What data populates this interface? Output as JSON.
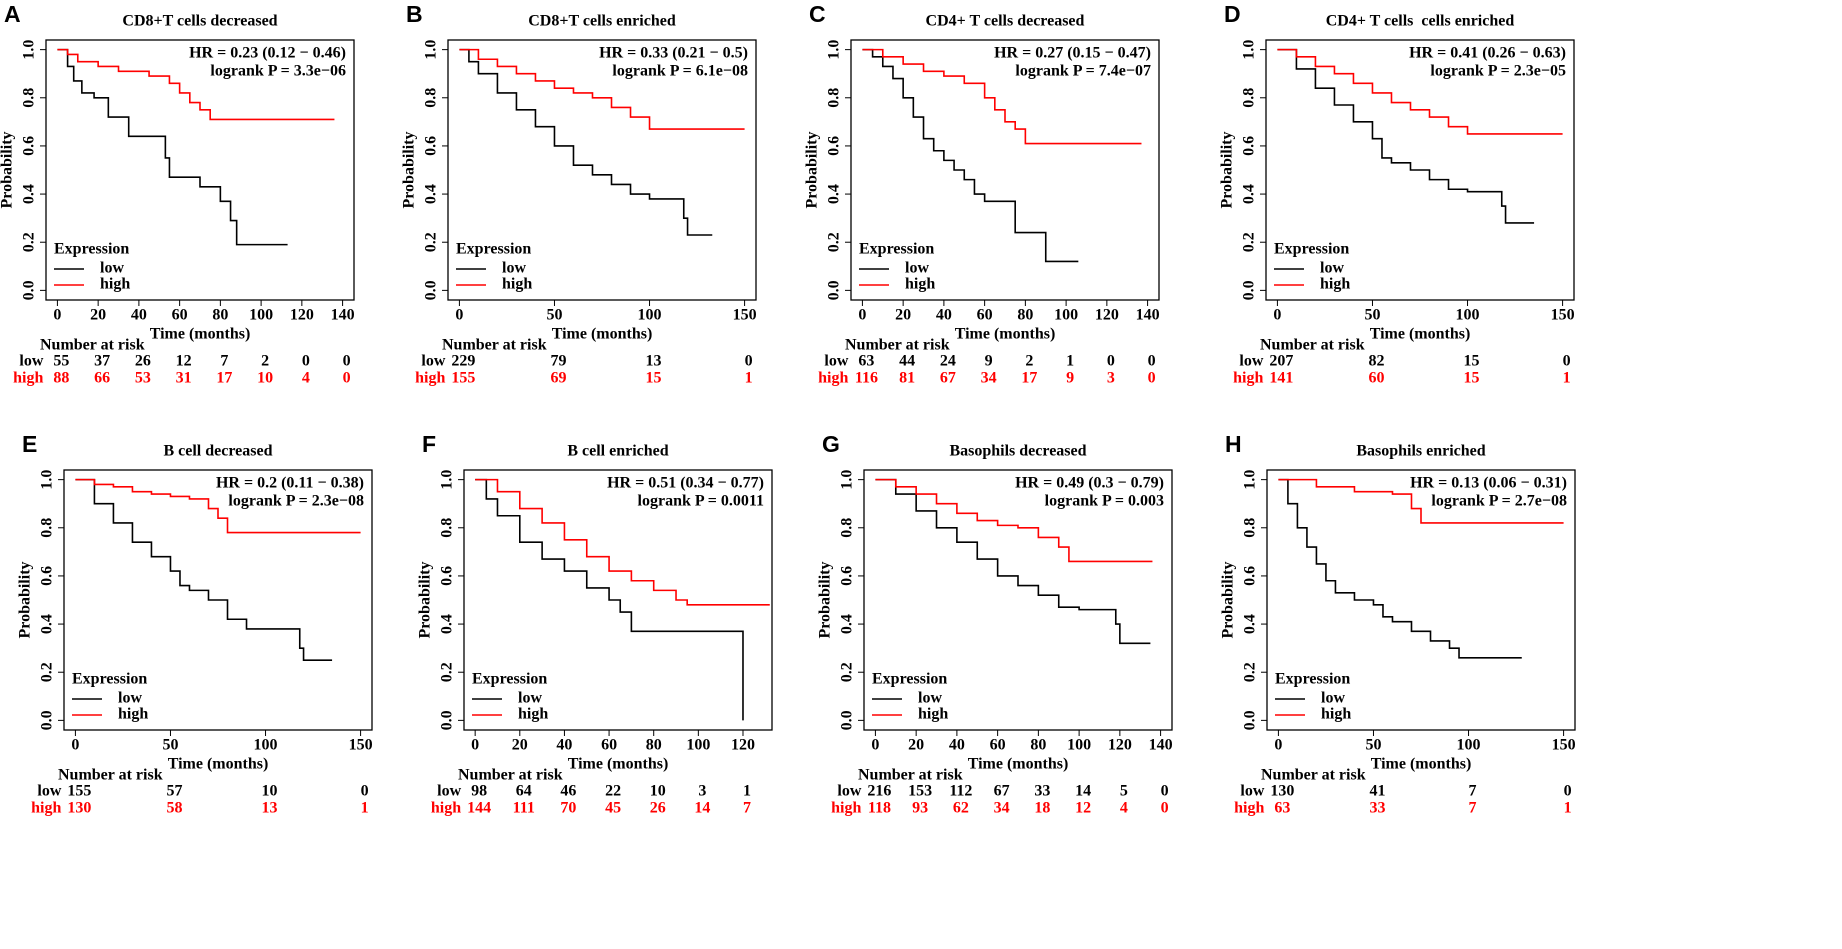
{
  "chart_data": [
    {
      "type": "line",
      "step": true,
      "panel": "A",
      "title": "CD8+T cells decreased",
      "annotations": [
        "HR = 0.23 (0.12 − 0.46)",
        "logrank P = 3.3e−06"
      ],
      "xlabel": "Time (months)",
      "ylabel": "Probability",
      "xlim": [
        -5.6,
        145.6
      ],
      "ylim": [
        -0.04,
        1.04
      ],
      "xticks": [
        0,
        20,
        40,
        60,
        80,
        100,
        120,
        140
      ],
      "yticks": [
        {
          "value": 0,
          "label": "0.0"
        },
        0.2,
        0.4,
        0.6,
        0.8,
        {
          "value": 1,
          "label": "1.0"
        }
      ],
      "legend_title": "Expression",
      "legend": "bottomleft",
      "series": [
        {
          "name": "low",
          "color": "#000000",
          "x": [
            0,
            5,
            8,
            12,
            18,
            25,
            35,
            50,
            53,
            55,
            65,
            70,
            80,
            85,
            88,
            95,
            113
          ],
          "values": [
            1,
            0.93,
            0.87,
            0.82,
            0.8,
            0.72,
            0.64,
            0.64,
            0.55,
            0.47,
            0.47,
            0.43,
            0.37,
            0.29,
            0.19,
            0.19,
            0.19
          ]
        },
        {
          "name": "high",
          "color": "#ff0000",
          "x": [
            0,
            5,
            10,
            20,
            30,
            45,
            55,
            60,
            65,
            70,
            75,
            136
          ],
          "values": [
            1,
            0.98,
            0.95,
            0.93,
            0.91,
            0.89,
            0.86,
            0.82,
            0.78,
            0.75,
            0.71,
            0.71
          ]
        }
      ],
      "risk_table": {
        "title": "Number at risk",
        "rows": [
          {
            "name": "low",
            "values": [
              55,
              37,
              26,
              12,
              7,
              2,
              0,
              0
            ]
          },
          {
            "name": "high",
            "values": [
              88,
              66,
              53,
              31,
              17,
              10,
              4,
              0
            ]
          }
        ]
      }
    },
    {
      "type": "line",
      "step": true,
      "panel": "B",
      "title": "CD8+T cells enriched",
      "annotations": [
        "HR = 0.33 (0.21 − 0.5)",
        "logrank P = 6.1e−08"
      ],
      "xlabel": "Time (months)",
      "ylabel": "Probability",
      "xlim": [
        -6,
        156
      ],
      "ylim": [
        -0.04,
        1.04
      ],
      "xticks": [
        0,
        50,
        100,
        150
      ],
      "yticks": [
        {
          "value": 0,
          "label": "0.0"
        },
        0.2,
        0.4,
        0.6,
        0.8,
        {
          "value": 1,
          "label": "1.0"
        }
      ],
      "legend_title": "Expression",
      "legend": "bottomleft",
      "series": [
        {
          "name": "low",
          "color": "#000000",
          "x": [
            0,
            5,
            10,
            20,
            30,
            40,
            50,
            60,
            70,
            80,
            90,
            100,
            110,
            118,
            120,
            133
          ],
          "values": [
            1,
            0.95,
            0.9,
            0.82,
            0.75,
            0.68,
            0.6,
            0.52,
            0.48,
            0.44,
            0.4,
            0.38,
            0.38,
            0.3,
            0.23,
            0.23
          ]
        },
        {
          "name": "high",
          "color": "#ff0000",
          "x": [
            0,
            10,
            20,
            30,
            40,
            50,
            60,
            70,
            80,
            90,
            100,
            150
          ],
          "values": [
            1,
            0.96,
            0.93,
            0.9,
            0.87,
            0.84,
            0.82,
            0.8,
            0.76,
            0.72,
            0.67,
            0.67
          ]
        }
      ],
      "risk_table": {
        "title": "Number at risk",
        "rows": [
          {
            "name": "low",
            "values": [
              229,
              79,
              13,
              0
            ]
          },
          {
            "name": "high",
            "values": [
              155,
              69,
              15,
              1
            ]
          }
        ]
      }
    },
    {
      "type": "line",
      "step": true,
      "panel": "C",
      "title": "CD4+ T cells decreased",
      "annotations": [
        "HR = 0.27 (0.15 − 0.47)",
        "logrank P = 7.4e−07"
      ],
      "xlabel": "Time (months)",
      "ylabel": "Probability",
      "xlim": [
        -5.6,
        145.6
      ],
      "ylim": [
        -0.04,
        1.04
      ],
      "xticks": [
        0,
        20,
        40,
        60,
        80,
        100,
        120,
        140
      ],
      "yticks": [
        {
          "value": 0,
          "label": "0.0"
        },
        0.2,
        0.4,
        0.6,
        0.8,
        {
          "value": 1,
          "label": "1.0"
        }
      ],
      "legend_title": "Expression",
      "legend": "bottomleft",
      "series": [
        {
          "name": "low",
          "color": "#000000",
          "x": [
            0,
            5,
            10,
            15,
            20,
            25,
            30,
            35,
            40,
            45,
            50,
            55,
            60,
            70,
            75,
            90,
            106
          ],
          "values": [
            1,
            0.97,
            0.93,
            0.88,
            0.8,
            0.72,
            0.63,
            0.58,
            0.54,
            0.5,
            0.46,
            0.4,
            0.37,
            0.37,
            0.24,
            0.12,
            0.12
          ]
        },
        {
          "name": "high",
          "color": "#ff0000",
          "x": [
            0,
            10,
            20,
            30,
            40,
            50,
            60,
            65,
            70,
            75,
            80,
            137
          ],
          "values": [
            1,
            0.97,
            0.94,
            0.91,
            0.89,
            0.86,
            0.8,
            0.75,
            0.7,
            0.67,
            0.61,
            0.61
          ]
        }
      ],
      "risk_table": {
        "title": "Number at risk",
        "rows": [
          {
            "name": "low",
            "values": [
              63,
              44,
              24,
              9,
              2,
              1,
              0,
              0
            ]
          },
          {
            "name": "high",
            "values": [
              116,
              81,
              67,
              34,
              17,
              9,
              3,
              0
            ]
          }
        ]
      }
    },
    {
      "type": "line",
      "step": true,
      "panel": "D",
      "title": "CD4+ T cells  cells enriched",
      "annotations": [
        "HR = 0.41 (0.26 − 0.63)",
        "logrank P = 2.3e−05"
      ],
      "xlabel": "Time (months)",
      "ylabel": "Probability",
      "xlim": [
        -6,
        156
      ],
      "ylim": [
        -0.04,
        1.04
      ],
      "xticks": [
        0,
        50,
        100,
        150
      ],
      "yticks": [
        {
          "value": 0,
          "label": "0.0"
        },
        0.2,
        0.4,
        0.6,
        0.8,
        {
          "value": 1,
          "label": "1.0"
        }
      ],
      "legend_title": "Expression",
      "legend": "bottomleft",
      "series": [
        {
          "name": "low",
          "color": "#000000",
          "x": [
            0,
            10,
            20,
            30,
            40,
            50,
            55,
            60,
            70,
            80,
            90,
            100,
            110,
            118,
            120,
            135
          ],
          "values": [
            1,
            0.92,
            0.84,
            0.77,
            0.7,
            0.63,
            0.55,
            0.53,
            0.5,
            0.46,
            0.42,
            0.41,
            0.41,
            0.35,
            0.28,
            0.28
          ]
        },
        {
          "name": "high",
          "color": "#ff0000",
          "x": [
            0,
            10,
            20,
            30,
            40,
            50,
            60,
            70,
            80,
            90,
            100,
            150
          ],
          "values": [
            1,
            0.97,
            0.93,
            0.9,
            0.86,
            0.82,
            0.78,
            0.75,
            0.72,
            0.68,
            0.65,
            0.65
          ]
        }
      ],
      "risk_table": {
        "title": "Number at risk",
        "rows": [
          {
            "name": "low",
            "values": [
              207,
              82,
              15,
              0
            ]
          },
          {
            "name": "high",
            "values": [
              141,
              60,
              15,
              1
            ]
          }
        ]
      }
    },
    {
      "type": "line",
      "step": true,
      "panel": "E",
      "title": "B cell decreased",
      "annotations": [
        "HR = 0.2 (0.11 − 0.38)",
        "logrank P = 2.3e−08"
      ],
      "xlabel": "Time (months)",
      "ylabel": "Probability",
      "xlim": [
        -6,
        156
      ],
      "ylim": [
        -0.04,
        1.04
      ],
      "xticks": [
        0,
        50,
        100,
        150
      ],
      "yticks": [
        {
          "value": 0,
          "label": "0.0"
        },
        0.2,
        0.4,
        0.6,
        0.8,
        {
          "value": 1,
          "label": "1.0"
        }
      ],
      "legend_title": "Expression",
      "legend": "bottomleft",
      "series": [
        {
          "name": "low",
          "color": "#000000",
          "x": [
            0,
            10,
            20,
            30,
            40,
            50,
            55,
            60,
            70,
            80,
            90,
            100,
            110,
            118,
            120,
            135
          ],
          "values": [
            1,
            0.9,
            0.82,
            0.74,
            0.68,
            0.62,
            0.56,
            0.54,
            0.5,
            0.42,
            0.38,
            0.38,
            0.38,
            0.3,
            0.25,
            0.25
          ]
        },
        {
          "name": "high",
          "color": "#ff0000",
          "x": [
            0,
            10,
            20,
            30,
            40,
            50,
            60,
            70,
            75,
            80,
            150
          ],
          "values": [
            1,
            0.98,
            0.97,
            0.95,
            0.94,
            0.93,
            0.92,
            0.88,
            0.84,
            0.78,
            0.78
          ]
        }
      ],
      "risk_table": {
        "title": "Number at risk",
        "rows": [
          {
            "name": "low",
            "values": [
              155,
              57,
              10,
              0
            ]
          },
          {
            "name": "high",
            "values": [
              130,
              58,
              13,
              1
            ]
          }
        ]
      }
    },
    {
      "type": "line",
      "step": true,
      "panel": "F",
      "title": "B cell enriched",
      "annotations": [
        "HR = 0.51 (0.34 − 0.77)",
        "logrank P = 0.0011"
      ],
      "xlabel": "Time (months)",
      "ylabel": "Probability",
      "xlim": [
        -5,
        133
      ],
      "ylim": [
        -0.04,
        1.04
      ],
      "xticks": [
        0,
        20,
        40,
        60,
        80,
        100,
        120
      ],
      "yticks": [
        {
          "value": 0,
          "label": "0.0"
        },
        0.2,
        0.4,
        0.6,
        0.8,
        {
          "value": 1,
          "label": "1.0"
        }
      ],
      "legend_title": "Expression",
      "legend": "bottomleft",
      "series": [
        {
          "name": "low",
          "color": "#000000",
          "x": [
            0,
            5,
            10,
            20,
            30,
            40,
            50,
            60,
            65,
            70,
            80,
            90,
            100,
            110,
            120,
            120
          ],
          "values": [
            1,
            0.92,
            0.85,
            0.74,
            0.67,
            0.62,
            0.55,
            0.5,
            0.45,
            0.37,
            0.37,
            0.37,
            0.37,
            0.37,
            0.37,
            0
          ]
        },
        {
          "name": "high",
          "color": "#ff0000",
          "x": [
            0,
            10,
            20,
            30,
            40,
            50,
            60,
            70,
            80,
            90,
            95,
            132
          ],
          "values": [
            1,
            0.95,
            0.88,
            0.82,
            0.75,
            0.68,
            0.62,
            0.58,
            0.54,
            0.5,
            0.48,
            0.48
          ]
        }
      ],
      "risk_table": {
        "title": "Number at risk",
        "rows": [
          {
            "name": "low",
            "values": [
              98,
              64,
              46,
              22,
              10,
              3,
              1
            ]
          },
          {
            "name": "high",
            "values": [
              144,
              111,
              70,
              45,
              26,
              14,
              7
            ]
          }
        ]
      }
    },
    {
      "type": "line",
      "step": true,
      "panel": "G",
      "title": "Basophils decreased",
      "annotations": [
        "HR = 0.49 (0.3 − 0.79)",
        "logrank P = 0.003"
      ],
      "xlabel": "Time (months)",
      "ylabel": "Probability",
      "xlim": [
        -5.6,
        145.6
      ],
      "ylim": [
        -0.04,
        1.04
      ],
      "xticks": [
        0,
        20,
        40,
        60,
        80,
        100,
        120,
        140
      ],
      "yticks": [
        {
          "value": 0,
          "label": "0.0"
        },
        0.2,
        0.4,
        0.6,
        0.8,
        {
          "value": 1,
          "label": "1.0"
        }
      ],
      "legend_title": "Expression",
      "legend": "bottomleft",
      "series": [
        {
          "name": "low",
          "color": "#000000",
          "x": [
            0,
            10,
            20,
            30,
            40,
            50,
            60,
            70,
            80,
            90,
            100,
            110,
            118,
            120,
            135
          ],
          "values": [
            1,
            0.94,
            0.87,
            0.8,
            0.74,
            0.67,
            0.6,
            0.56,
            0.52,
            0.47,
            0.46,
            0.46,
            0.4,
            0.32,
            0.32
          ]
        },
        {
          "name": "high",
          "color": "#ff0000",
          "x": [
            0,
            10,
            20,
            30,
            40,
            50,
            60,
            70,
            80,
            90,
            95,
            136
          ],
          "values": [
            1,
            0.97,
            0.94,
            0.9,
            0.86,
            0.83,
            0.81,
            0.8,
            0.76,
            0.72,
            0.66,
            0.66
          ]
        }
      ],
      "risk_table": {
        "title": "Number at risk",
        "rows": [
          {
            "name": "low",
            "values": [
              216,
              153,
              112,
              67,
              33,
              14,
              5,
              0
            ]
          },
          {
            "name": "high",
            "values": [
              118,
              93,
              62,
              34,
              18,
              12,
              4,
              0
            ]
          }
        ]
      }
    },
    {
      "type": "line",
      "step": true,
      "panel": "H",
      "title": "Basophils enriched",
      "annotations": [
        "HR = 0.13 (0.06 − 0.31)",
        "logrank P = 2.7e−08"
      ],
      "xlabel": "Time (months)",
      "ylabel": "Probability",
      "xlim": [
        -6,
        156
      ],
      "ylim": [
        -0.04,
        1.04
      ],
      "xticks": [
        0,
        50,
        100,
        150
      ],
      "yticks": [
        {
          "value": 0,
          "label": "0.0"
        },
        0.2,
        0.4,
        0.6,
        0.8,
        {
          "value": 1,
          "label": "1.0"
        }
      ],
      "legend_title": "Expression",
      "legend": "bottomleft",
      "series": [
        {
          "name": "low",
          "color": "#000000",
          "x": [
            0,
            5,
            10,
            15,
            20,
            25,
            30,
            40,
            50,
            55,
            60,
            70,
            80,
            90,
            95,
            128
          ],
          "values": [
            1,
            0.9,
            0.8,
            0.72,
            0.65,
            0.58,
            0.53,
            0.5,
            0.48,
            0.43,
            0.41,
            0.37,
            0.33,
            0.3,
            0.26,
            0.26
          ]
        },
        {
          "name": "high",
          "color": "#ff0000",
          "x": [
            0,
            20,
            40,
            60,
            70,
            75,
            150
          ],
          "values": [
            1,
            0.97,
            0.95,
            0.94,
            0.88,
            0.82,
            0.82
          ]
        }
      ],
      "risk_table": {
        "title": "Number at risk",
        "rows": [
          {
            "name": "low",
            "values": [
              130,
              41,
              7,
              0
            ]
          },
          {
            "name": "high",
            "values": [
              63,
              33,
              7,
              1
            ]
          }
        ]
      }
    }
  ]
}
